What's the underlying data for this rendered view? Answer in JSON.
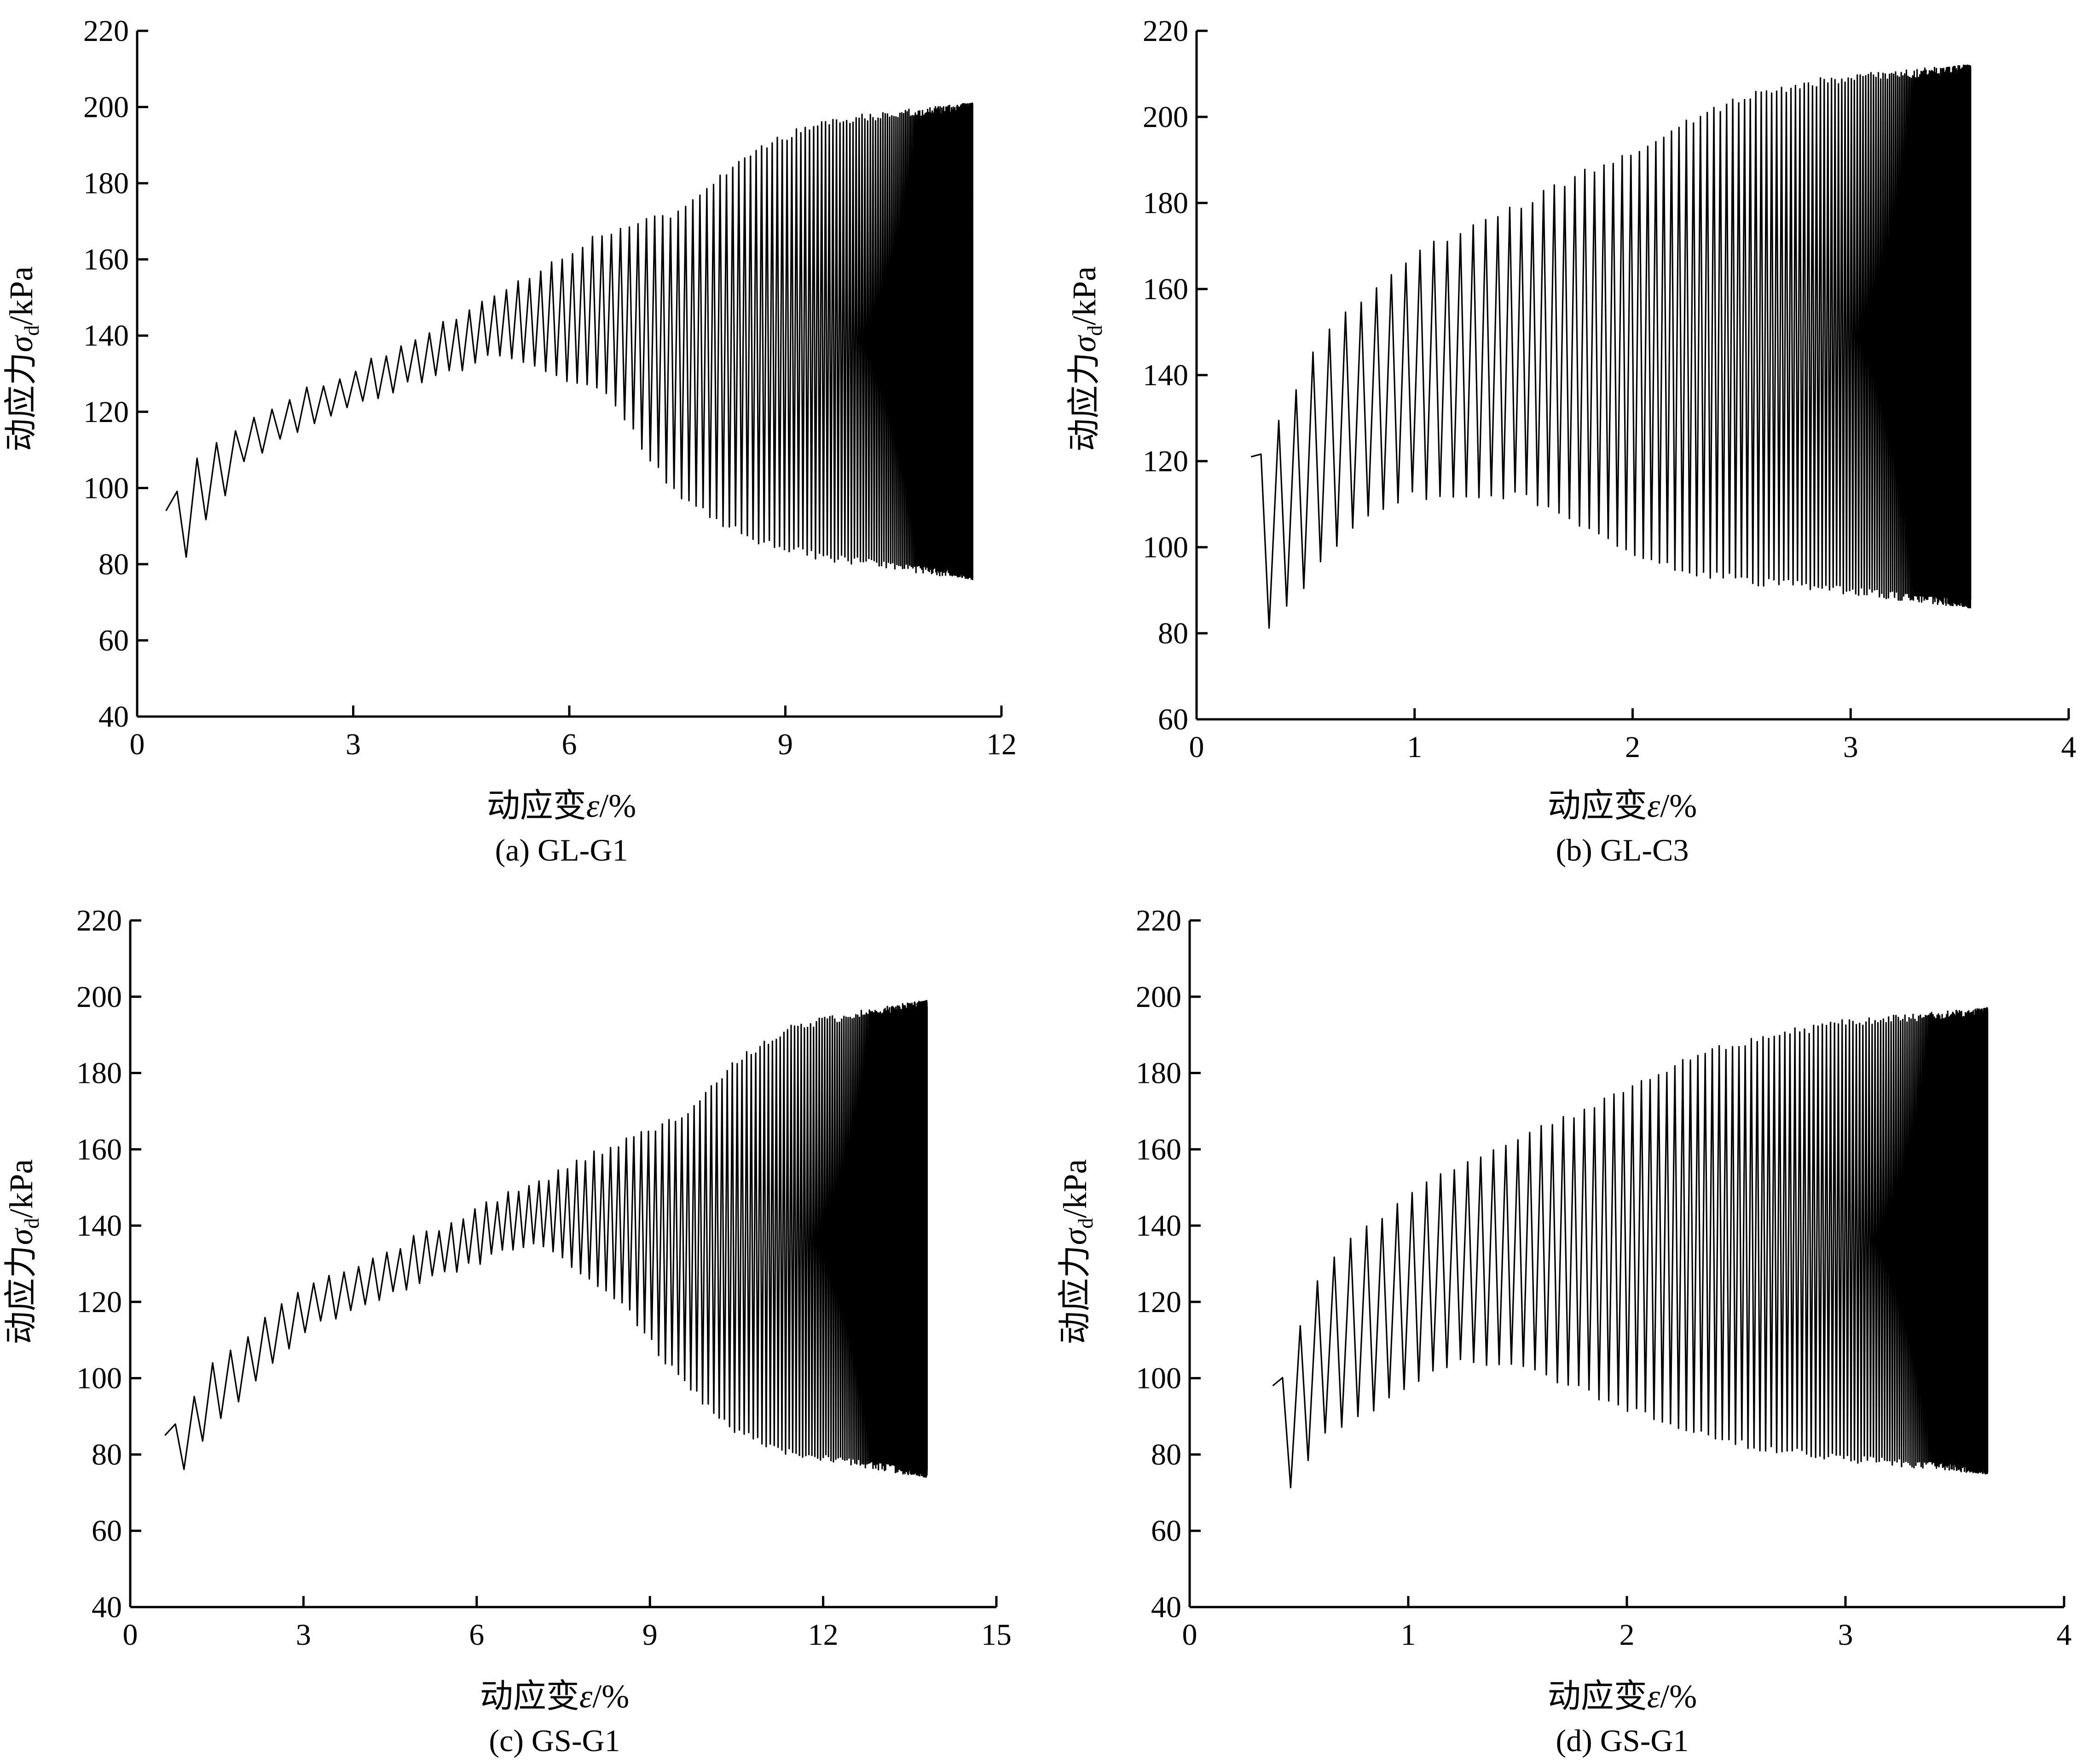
{
  "figure": {
    "panels": [
      {
        "id": "a",
        "caption": "(a) GL-G1",
        "xlabel_main": "动应变",
        "xlabel_symbol": "ε",
        "xlabel_unit": "/%",
        "ylabel_main": "动应力",
        "ylabel_symbol": "σ",
        "ylabel_sub": "d",
        "ylabel_unit": "/kPa"
      },
      {
        "id": "b",
        "caption": "(b) GL-C3",
        "xlabel_main": "动应变",
        "xlabel_symbol": "ε",
        "xlabel_unit": "/%",
        "ylabel_main": "动应力",
        "ylabel_symbol": "σ",
        "ylabel_sub": "d",
        "ylabel_unit": "/kPa"
      },
      {
        "id": "c",
        "caption": "(c) GS-G1",
        "xlabel_main": "动应变",
        "xlabel_symbol": "ε",
        "xlabel_unit": "/%",
        "ylabel_main": "动应力",
        "ylabel_symbol": "σ",
        "ylabel_sub": "d",
        "ylabel_unit": "/kPa"
      },
      {
        "id": "d",
        "caption": "(d) GS-G1",
        "xlabel_main": "动应变",
        "xlabel_symbol": "ε",
        "xlabel_unit": "/%",
        "ylabel_main": "动应力",
        "ylabel_symbol": "σ",
        "ylabel_sub": "d",
        "ylabel_unit": "/kPa"
      }
    ]
  },
  "chart_data": [
    {
      "type": "line",
      "title": "(a) GL-G1",
      "xlabel": "动应变ε/%",
      "ylabel": "动应力σd/kPa",
      "xlim": [
        0,
        12
      ],
      "ylim": [
        40,
        220
      ],
      "xticks": [
        0,
        3,
        6,
        9,
        12
      ],
      "yticks": [
        40,
        60,
        80,
        100,
        120,
        140,
        160,
        180,
        200,
        220
      ],
      "grid": false,
      "series": [
        {
          "cycles": 220,
          "start": [
            0.4,
            94
          ],
          "peak_envelope": [
            [
              0.4,
              94
            ],
            [
              0.7,
              106
            ],
            [
              1.5,
              118
            ],
            [
              3.0,
              131
            ],
            [
              5.0,
              150
            ],
            [
              6.5,
              167
            ],
            [
              7.5,
              172
            ],
            [
              8.5,
              188
            ],
            [
              9.5,
              196
            ],
            [
              11.6,
              200
            ]
          ],
          "trough_envelope": [
            [
              0.4,
              71
            ],
            [
              0.7,
              83
            ],
            [
              1.5,
              107
            ],
            [
              3.0,
              122
            ],
            [
              5.0,
              135
            ],
            [
              6.5,
              125
            ],
            [
              7.5,
              98
            ],
            [
              8.5,
              87
            ],
            [
              9.5,
              82
            ],
            [
              11.6,
              77
            ]
          ]
        }
      ]
    },
    {
      "type": "line",
      "title": "(b) GL-C3",
      "xlabel": "动应变ε/%",
      "ylabel": "动应力σd/kPa",
      "xlim": [
        0,
        4
      ],
      "ylim": [
        60,
        220
      ],
      "xticks": [
        0,
        1,
        2,
        3,
        4
      ],
      "yticks": [
        60,
        80,
        100,
        120,
        140,
        160,
        180,
        200,
        220
      ],
      "grid": false,
      "series": [
        {
          "cycles": 240,
          "start": [
            0.25,
            121
          ],
          "peak_envelope": [
            [
              0.25,
              121
            ],
            [
              0.33,
              124
            ],
            [
              0.5,
              142
            ],
            [
              0.6,
              151
            ],
            [
              0.8,
              160
            ],
            [
              1.0,
              168
            ],
            [
              1.5,
              180
            ],
            [
              2.0,
              192
            ],
            [
              2.3,
              200
            ],
            [
              2.6,
              206
            ],
            [
              3.0,
              209
            ],
            [
              3.55,
              211
            ]
          ],
          "trough_envelope": [
            [
              0.25,
              121
            ],
            [
              0.33,
              82
            ],
            [
              0.5,
              91
            ],
            [
              0.6,
              99
            ],
            [
              0.8,
              109
            ],
            [
              1.0,
              112
            ],
            [
              1.5,
              112
            ],
            [
              2.0,
              98
            ],
            [
              2.3,
              94
            ],
            [
              2.6,
              92
            ],
            [
              3.0,
              90
            ],
            [
              3.55,
              87
            ]
          ]
        }
      ]
    },
    {
      "type": "line",
      "title": "(c) GS-G1",
      "xlabel": "动应变ε/%",
      "ylabel": "动应力σd/kPa",
      "xlim": [
        0,
        15
      ],
      "ylim": [
        40,
        220
      ],
      "xticks": [
        0,
        3,
        6,
        9,
        12,
        15
      ],
      "yticks": [
        40,
        60,
        80,
        100,
        120,
        140,
        160,
        180,
        200,
        220
      ],
      "grid": false,
      "series": [
        {
          "cycles": 230,
          "start": [
            0.6,
            85
          ],
          "peak_envelope": [
            [
              0.6,
              85
            ],
            [
              1.5,
              105
            ],
            [
              3.0,
              124
            ],
            [
              5.0,
              137
            ],
            [
              7.0,
              151
            ],
            [
              8.5,
              162
            ],
            [
              9.5,
              168
            ],
            [
              10.5,
              183
            ],
            [
              11.5,
              192
            ],
            [
              12.5,
              195
            ],
            [
              13.8,
              198
            ]
          ],
          "trough_envelope": [
            [
              0.6,
              68
            ],
            [
              1.5,
              88
            ],
            [
              3.0,
              112
            ],
            [
              5.0,
              125
            ],
            [
              7.0,
              136
            ],
            [
              8.5,
              120
            ],
            [
              9.5,
              100
            ],
            [
              10.5,
              86
            ],
            [
              11.5,
              80
            ],
            [
              12.5,
              78
            ],
            [
              13.8,
              75
            ]
          ]
        }
      ]
    },
    {
      "type": "line",
      "title": "(d) GS-G1",
      "xlabel": "动应变ε/%",
      "ylabel": "动应力σd/kPa",
      "xlim": [
        0,
        4
      ],
      "ylim": [
        40,
        220
      ],
      "xticks": [
        0,
        1,
        2,
        3,
        4
      ],
      "yticks": [
        40,
        60,
        80,
        100,
        120,
        140,
        160,
        180,
        200,
        220
      ],
      "grid": false,
      "series": [
        {
          "cycles": 240,
          "start": [
            0.38,
            98
          ],
          "peak_envelope": [
            [
              0.38,
              98
            ],
            [
              0.45,
              103
            ],
            [
              0.55,
              123
            ],
            [
              0.7,
              134
            ],
            [
              1.0,
              148
            ],
            [
              1.2,
              155
            ],
            [
              1.5,
              163
            ],
            [
              2.0,
              175
            ],
            [
              2.3,
              184
            ],
            [
              2.6,
              189
            ],
            [
              3.0,
              193
            ],
            [
              3.65,
              196
            ]
          ],
          "trough_envelope": [
            [
              0.38,
              98
            ],
            [
              0.45,
              70
            ],
            [
              0.6,
              84
            ],
            [
              0.73,
              89
            ],
            [
              1.0,
              97
            ],
            [
              1.2,
              104
            ],
            [
              1.5,
              104
            ],
            [
              2.0,
              92
            ],
            [
              2.3,
              86
            ],
            [
              2.6,
              82
            ],
            [
              3.0,
              79
            ],
            [
              3.65,
              76
            ]
          ]
        }
      ]
    }
  ]
}
